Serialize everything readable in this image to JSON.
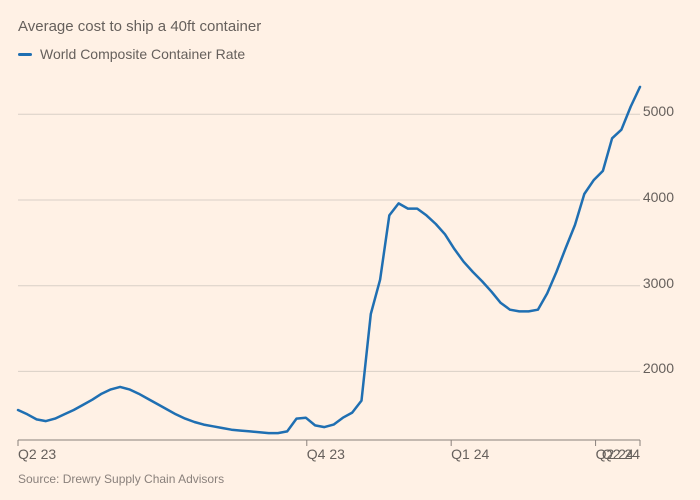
{
  "chart": {
    "type": "line",
    "subtitle": "Average cost to ship a 40ft container",
    "legend_label": "World Composite Container Rate",
    "source": "Source: Drewry Supply Chain Advisors",
    "background_color": "#fff1e5",
    "text_color": "#66605c",
    "grid_color": "#d9cfc6",
    "axis_color": "#8a817c",
    "line_color": "#1f6fb2",
    "line_width": 2.5,
    "subtitle_fontsize": 15,
    "legend_fontsize": 14,
    "tick_fontsize": 14,
    "source_fontsize": 12,
    "y": {
      "min": 1200,
      "max": 5400,
      "ticks": [
        2000,
        3000,
        4000,
        5000
      ]
    },
    "x": {
      "min": 0,
      "max": 56,
      "ticks": [
        {
          "pos": 0,
          "label": "Q2 23"
        },
        {
          "pos": 26,
          "label": "Q4 23"
        },
        {
          "pos": 39,
          "label": "Q1 24"
        },
        {
          "pos": 52,
          "label": "Q2 24"
        },
        {
          "pos": 56,
          "label": "Q2 24",
          "align_right": true
        }
      ]
    },
    "series": [
      {
        "name": "World Composite Container Rate",
        "values": [
          1550,
          1500,
          1440,
          1420,
          1450,
          1500,
          1550,
          1610,
          1670,
          1740,
          1790,
          1820,
          1790,
          1740,
          1680,
          1620,
          1560,
          1500,
          1450,
          1410,
          1380,
          1360,
          1340,
          1320,
          1310,
          1300,
          1290,
          1280,
          1280,
          1300,
          1450,
          1460,
          1370,
          1350,
          1380,
          1460,
          1520,
          1660,
          2670,
          3070,
          3820,
          3960,
          3900,
          3900,
          3820,
          3720,
          3600,
          3430,
          3280,
          3160,
          3050,
          2930,
          2800,
          2720,
          2700,
          2700,
          2720,
          2910,
          3160,
          3440,
          3710,
          4070,
          4230,
          4340,
          4720,
          4820,
          5090,
          5320
        ]
      }
    ]
  }
}
